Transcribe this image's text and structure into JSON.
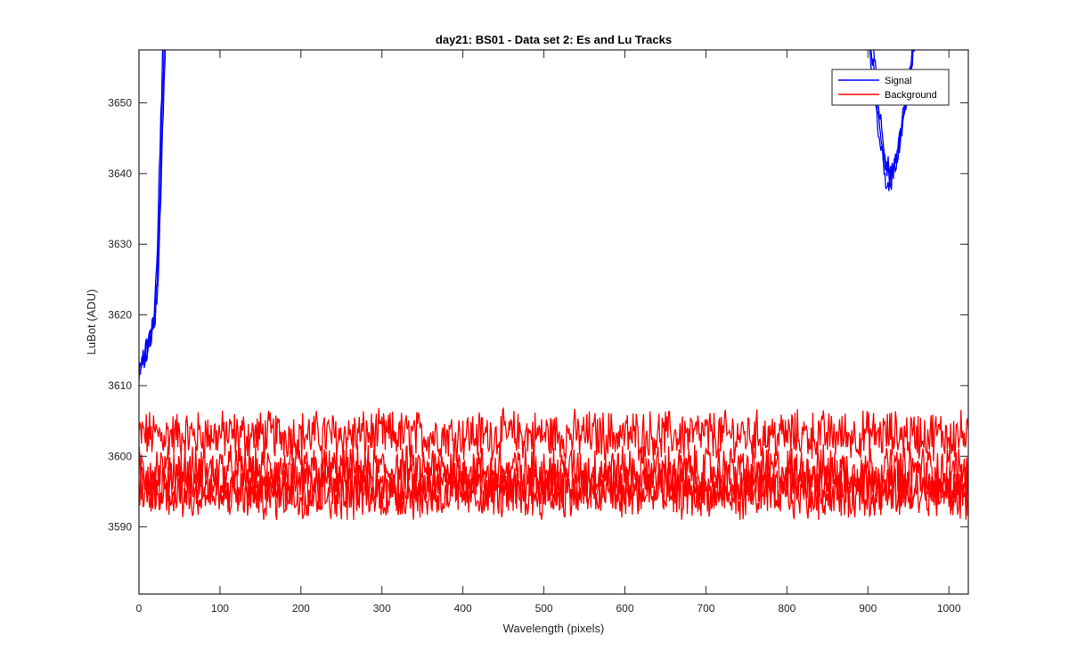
{
  "chart_data": {
    "type": "line",
    "title": "day21: BS01 - Data set 2: Es and Lu Tracks",
    "xlabel": "Wavelength (pixels)",
    "ylabel": "LuBot (ADU)",
    "xlim": [
      0,
      1024
    ],
    "ylim": [
      3580.5,
      3657.5
    ],
    "xticks": [
      0,
      100,
      200,
      300,
      400,
      500,
      600,
      700,
      800,
      900,
      1000
    ],
    "yticks": [
      3590,
      3600,
      3610,
      3620,
      3630,
      3640,
      3650
    ],
    "grid": false,
    "legend_position": "top-right",
    "series": [
      {
        "name": "Signal",
        "color": "#0000ff",
        "traces": 3,
        "x": [
          0,
          5,
          10,
          15,
          18,
          20,
          22,
          24,
          26,
          28,
          30,
          900,
          905,
          910,
          915,
          920,
          925,
          930,
          935,
          940,
          945,
          950,
          955,
          960
        ],
        "y": [
          3613,
          3614,
          3616,
          3618,
          3620,
          3623,
          3628,
          3636,
          3645,
          3652,
          3660,
          3662,
          3655,
          3650,
          3645,
          3641,
          3639,
          3640,
          3643,
          3646,
          3650,
          3654,
          3658,
          3662
        ]
      },
      {
        "name": "Background",
        "color": "#ff0000",
        "traces": 4,
        "x": [
          0,
          1024
        ],
        "levels": [
          3603,
          3598,
          3596,
          3594.5
        ],
        "noise_range": [
          3591,
          3607.5
        ]
      }
    ]
  }
}
